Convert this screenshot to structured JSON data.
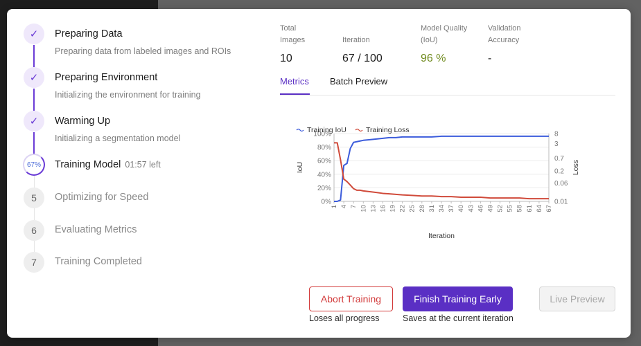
{
  "steps": [
    {
      "title": "Preparing Data",
      "subtitle": "Preparing data from labeled images and ROIs",
      "status": "done",
      "icon": "check-icon"
    },
    {
      "title": "Preparing Environment",
      "subtitle": "Initializing the environment for training",
      "status": "done",
      "icon": "check-icon"
    },
    {
      "title": "Warming Up",
      "subtitle": "Initializing a segmentation model",
      "status": "done",
      "icon": "check-icon"
    },
    {
      "title": "Training Model",
      "progress": "67%",
      "time_left": "01:57 left",
      "status": "active"
    },
    {
      "title": "Optimizing for Speed",
      "number": "5",
      "status": "todo"
    },
    {
      "title": "Evaluating Metrics",
      "number": "6",
      "status": "todo"
    },
    {
      "title": "Training Completed",
      "number": "7",
      "status": "todo"
    }
  ],
  "stats": {
    "total_images": {
      "label": "Total Images",
      "value": "10"
    },
    "iteration": {
      "label": "Iteration",
      "value": "67 / 100"
    },
    "model_quality": {
      "label": "Model Quality (IoU)",
      "value": "96 %"
    },
    "validation_accuracy": {
      "label": "Validation Accuracy",
      "value": "-"
    }
  },
  "tabs": {
    "metrics": "Metrics",
    "batch_preview": "Batch Preview",
    "active": "Metrics"
  },
  "buttons": {
    "abort": "Abort Training",
    "abort_caption": "Loses all progress",
    "finish": "Finish Training Early",
    "finish_caption": "Saves at the current iteration",
    "live_preview": "Live Preview"
  },
  "colors": {
    "accent": "#5a2fc4",
    "danger": "#d23a3a",
    "quality_green": "#6f8a1d",
    "iou_line": "#3b5bdb",
    "loss_line": "#d04a3a"
  },
  "chart_data": {
    "type": "line",
    "title": "",
    "xlabel": "Iteration",
    "ylabel": "IoU",
    "y2label": "Loss",
    "legend": [
      "Training IoU",
      "Training Loss"
    ],
    "x_ticks": [
      "1",
      "4",
      "7",
      "10",
      "13",
      "16",
      "19",
      "22",
      "25",
      "28",
      "31",
      "34",
      "37",
      "40",
      "43",
      "46",
      "49",
      "52",
      "55",
      "58",
      "61",
      "64",
      "67"
    ],
    "y_ticks": [
      "0%",
      "20%",
      "40%",
      "60%",
      "80%",
      "100%"
    ],
    "y_values": [
      0,
      20,
      40,
      60,
      80,
      100
    ],
    "y2_ticks": [
      "0.01",
      "0.06",
      "0.2",
      "0.7",
      "3",
      "8"
    ],
    "y2_values": [
      0.01,
      0.06,
      0.2,
      0.7,
      3,
      8
    ],
    "ylim": [
      0,
      100
    ],
    "y2lim": [
      0.01,
      8
    ],
    "y2_scale": "log",
    "series": [
      {
        "name": "Training IoU",
        "axis": "left",
        "x": [
          1,
          2,
          3,
          4,
          5,
          6,
          7,
          8,
          9,
          10,
          12,
          14,
          16,
          18,
          20,
          22,
          25,
          28,
          31,
          34,
          37,
          40,
          43,
          46,
          49,
          52,
          55,
          58,
          61,
          64,
          66,
          67
        ],
        "values": [
          0,
          0,
          2,
          53,
          56,
          78,
          87,
          88,
          89,
          90,
          91,
          92,
          93,
          94,
          94,
          95,
          95,
          95,
          95,
          96,
          96,
          96,
          96,
          96,
          96,
          96,
          96,
          96,
          96,
          96,
          96,
          96
        ]
      },
      {
        "name": "Training Loss",
        "axis": "right",
        "x": [
          1,
          2,
          3,
          4,
          5,
          6,
          7,
          8,
          9,
          10,
          12,
          14,
          16,
          18,
          20,
          22,
          25,
          28,
          31,
          34,
          37,
          40,
          43,
          46,
          49,
          52,
          55,
          58,
          61,
          64,
          66,
          67
        ],
        "values": [
          3.2,
          3.2,
          0.6,
          0.09,
          0.07,
          0.05,
          0.035,
          0.03,
          0.03,
          0.028,
          0.026,
          0.024,
          0.022,
          0.021,
          0.02,
          0.019,
          0.018,
          0.017,
          0.017,
          0.016,
          0.016,
          0.015,
          0.015,
          0.015,
          0.014,
          0.014,
          0.014,
          0.014,
          0.013,
          0.013,
          0.013,
          0.013
        ]
      }
    ]
  }
}
